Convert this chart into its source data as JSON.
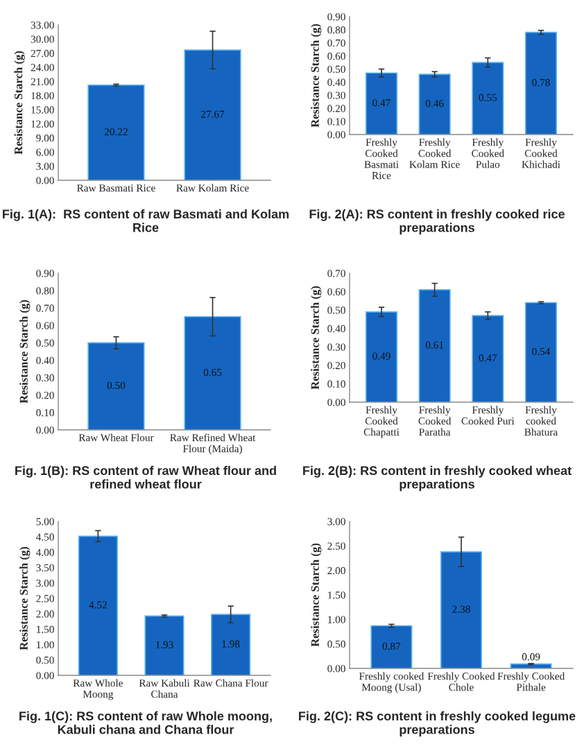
{
  "chart_data": [
    {
      "type": "bar",
      "title": "Fig. 1(A):  RS content of raw Basmati and Kolam Rice",
      "ylabel": "Resistance Starch (g)",
      "categories": [
        "Raw Basmati Rice",
        "Raw Kolam Rice"
      ],
      "values": [
        20.22,
        27.67
      ],
      "value_labels": [
        "20.22",
        "27.67"
      ],
      "errors": [
        0.2,
        4
      ],
      "color": "#1565c0",
      "ylim": [
        0,
        33
      ],
      "yticks": [
        {
          "value": 0,
          "label": "0.00"
        },
        {
          "value": 3,
          "label": "3.00"
        },
        {
          "value": 6,
          "label": "6.00"
        },
        {
          "value": 9,
          "label": "9.00"
        },
        {
          "value": 12,
          "label": "12.00"
        },
        {
          "value": 15,
          "label": "15.00"
        },
        {
          "value": 18,
          "label": "18.00"
        },
        {
          "value": 21,
          "label": "21.00"
        },
        {
          "value": 24,
          "label": "24.00"
        },
        {
          "value": 27,
          "label": "27.00"
        },
        {
          "value": 30,
          "label": "30.00"
        },
        {
          "value": 33,
          "label": "33.00"
        }
      ]
    },
    {
      "type": "bar",
      "title": "Fig. 2(A): RS content in freshly cooked rice preparations",
      "ylabel": "Resistance Starch (g)",
      "categories": [
        "Freshly\nCooked\nBasmati\nRice",
        "Freshly\nCooked\nKolam Rice",
        "Freshly\nCooked\nPulao",
        "Freshly\nCooked\nKhichadi"
      ],
      "values": [
        0.47,
        0.46,
        0.55,
        0.78
      ],
      "value_labels": [
        "0.47",
        "0.46",
        "0.55",
        "0.78"
      ],
      "errors": [
        0.03,
        0.02,
        0.035,
        0.015
      ],
      "color": "#1565c0",
      "ylim": [
        0,
        0.9
      ],
      "yticks": [
        {
          "value": 0,
          "label": "0.00"
        },
        {
          "value": 0.1,
          "label": "0.10"
        },
        {
          "value": 0.2,
          "label": "0.20"
        },
        {
          "value": 0.3,
          "label": "0.30"
        },
        {
          "value": 0.4,
          "label": "0.40"
        },
        {
          "value": 0.5,
          "label": "0.50"
        },
        {
          "value": 0.6,
          "label": "0.60"
        },
        {
          "value": 0.7,
          "label": "0.70"
        },
        {
          "value": 0.8,
          "label": "0.80"
        },
        {
          "value": 0.9,
          "label": "0.90"
        }
      ]
    },
    {
      "type": "bar",
      "title": "Fig. 1(B): RS content of raw Wheat flour and refined wheat flour",
      "ylabel": "Resistance Starch (g)",
      "categories": [
        "Raw Wheat Flour",
        "Raw Refined Wheat\nFlour (Maida)"
      ],
      "values": [
        0.5,
        0.65
      ],
      "value_labels": [
        "0.50",
        "0.65"
      ],
      "errors": [
        0.035,
        0.11
      ],
      "color": "#1565c0",
      "ylim": [
        0,
        0.9
      ],
      "yticks": [
        {
          "value": 0,
          "label": "0.00"
        },
        {
          "value": 0.1,
          "label": "0.10"
        },
        {
          "value": 0.2,
          "label": "0.20"
        },
        {
          "value": 0.3,
          "label": "0.30"
        },
        {
          "value": 0.4,
          "label": "0.40"
        },
        {
          "value": 0.5,
          "label": "0.50"
        },
        {
          "value": 0.6,
          "label": "0.60"
        },
        {
          "value": 0.7,
          "label": "0.70"
        },
        {
          "value": 0.8,
          "label": "0.80"
        },
        {
          "value": 0.9,
          "label": "0.90"
        }
      ]
    },
    {
      "type": "bar",
      "title": "Fig. 2(B): RS content in freshly cooked wheat preparations",
      "ylabel": "Resistance Starch (g)",
      "categories": [
        "Freshly\nCooked\nChapatti",
        "Freshly\nCooked\nParatha",
        "Freshly\nCooked Puri",
        "Freshly\ncooked\nBhatura"
      ],
      "values": [
        0.49,
        0.61,
        0.47,
        0.54
      ],
      "value_labels": [
        "0.49",
        "0.61",
        "0.47",
        "0.54"
      ],
      "errors": [
        0.025,
        0.035,
        0.02,
        0.005
      ],
      "color": "#1565c0",
      "ylim": [
        0,
        0.7
      ],
      "yticks": [
        {
          "value": 0,
          "label": "0.00"
        },
        {
          "value": 0.1,
          "label": "0.10"
        },
        {
          "value": 0.2,
          "label": "0.20"
        },
        {
          "value": 0.3,
          "label": "0.30"
        },
        {
          "value": 0.4,
          "label": "0.40"
        },
        {
          "value": 0.5,
          "label": "0.50"
        },
        {
          "value": 0.6,
          "label": "0.60"
        },
        {
          "value": 0.7,
          "label": "0.70"
        }
      ]
    },
    {
      "type": "bar",
      "title": "Fig. 1(C): RS content of raw Whole moong, Kabuli chana and Chana flour",
      "ylabel": "Resistance Starch (g)",
      "categories": [
        "Raw Whole\nMoong",
        "Raw Kabuli\nChana",
        "Raw Chana Flour"
      ],
      "values": [
        4.52,
        1.93,
        1.98
      ],
      "value_labels": [
        "4.52",
        "1.93",
        "1.98"
      ],
      "errors": [
        0.18,
        0.03,
        0.27
      ],
      "color": "#1565c0",
      "ylim": [
        0,
        5
      ],
      "yticks": [
        {
          "value": 0,
          "label": "0.00"
        },
        {
          "value": 0.5,
          "label": "0.50"
        },
        {
          "value": 1,
          "label": "1.00"
        },
        {
          "value": 1.5,
          "label": "1.50"
        },
        {
          "value": 2,
          "label": "2.00"
        },
        {
          "value": 2.5,
          "label": "2.50"
        },
        {
          "value": 3,
          "label": "3.00"
        },
        {
          "value": 3.5,
          "label": "3.50"
        },
        {
          "value": 4,
          "label": "4.00"
        },
        {
          "value": 4.5,
          "label": "4.50"
        },
        {
          "value": 5,
          "label": "5.00"
        }
      ]
    },
    {
      "type": "bar",
      "title": "Fig. 2(C): RS content in freshly cooked legume preparations",
      "ylabel": "Resistance Starch (g)",
      "categories": [
        "Freshly cooked\nMoong (Usal)",
        "Freshly Cooked\nChole",
        "Freshly Cooked\nPithale"
      ],
      "values": [
        0.87,
        2.38,
        0.09
      ],
      "value_labels": [
        "0.87",
        "2.38",
        "0.09"
      ],
      "errors": [
        0.03,
        0.3,
        0.01
      ],
      "color": "#1565c0",
      "ylim": [
        0,
        3
      ],
      "yticks": [
        {
          "value": 0,
          "label": "0.00"
        },
        {
          "value": 0.5,
          "label": "0.50"
        },
        {
          "value": 1,
          "label": "1.00"
        },
        {
          "value": 1.5,
          "label": "1.50"
        },
        {
          "value": 2,
          "label": "2.00"
        },
        {
          "value": 2.5,
          "label": "2.50"
        },
        {
          "value": 3,
          "label": "3.00"
        }
      ]
    }
  ]
}
